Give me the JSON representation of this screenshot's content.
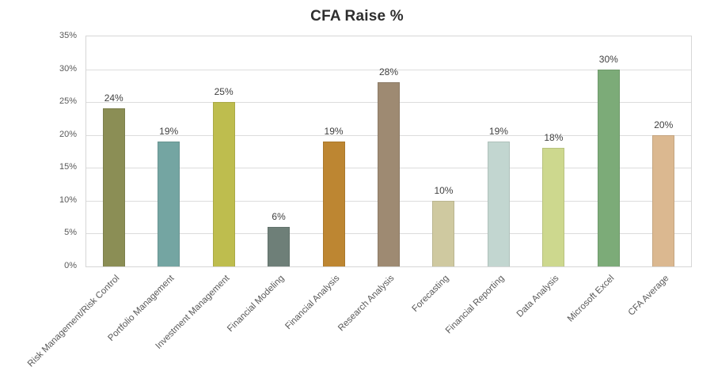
{
  "chart_data": {
    "type": "bar",
    "title": "CFA Raise %",
    "categories": [
      "Risk Management/Risk Control",
      "Portfolio Management",
      "Investment Management",
      "Financial Modeling",
      "Financial Analysis",
      "Research Analysis",
      "Forecasting",
      "Financial Reporting",
      "Data Analysis",
      "Microsoft Excel",
      "CFA Average"
    ],
    "values": [
      24,
      19,
      25,
      6,
      19,
      28,
      10,
      19,
      18,
      30,
      20
    ],
    "value_labels": [
      "24%",
      "19%",
      "25%",
      "6%",
      "19%",
      "28%",
      "10%",
      "19%",
      "18%",
      "30%",
      "20%"
    ],
    "colors": [
      "#8b8e55",
      "#74a5a2",
      "#bebd4e",
      "#6e7f78",
      "#bd8632",
      "#9e8a72",
      "#cfc9a0",
      "#c2d6d0",
      "#cdd88e",
      "#7cab78",
      "#dbb890"
    ],
    "xlabel": "",
    "ylabel": "",
    "ylim": [
      0,
      35
    ],
    "ytick_step": 5,
    "ytick_suffix": "%",
    "grid": true,
    "legend": false
  }
}
